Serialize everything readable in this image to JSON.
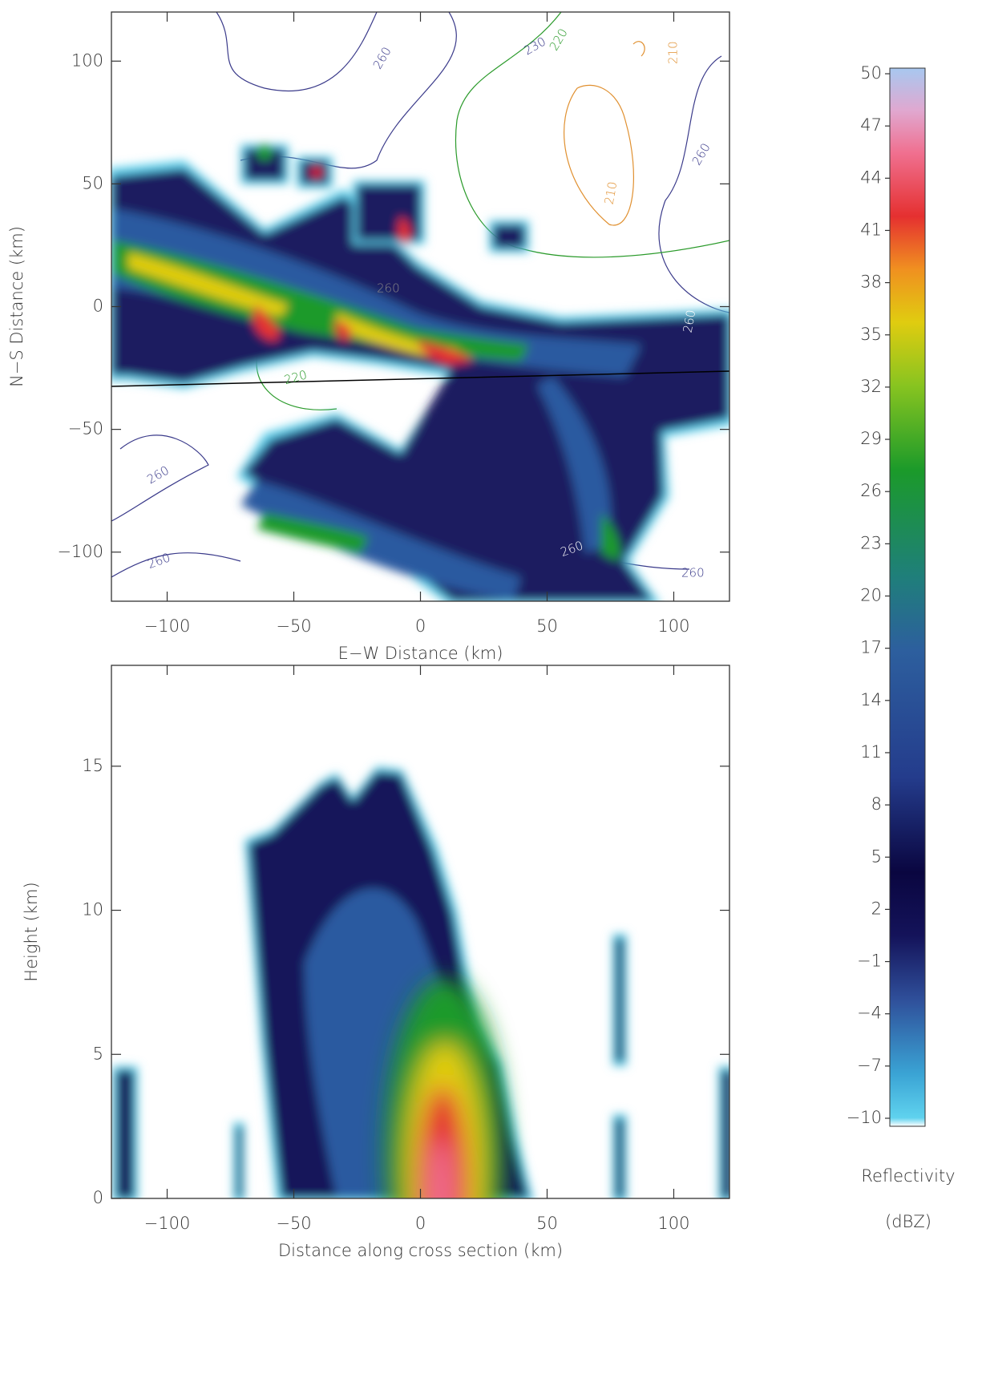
{
  "chart_data": [
    {
      "type": "heatmap",
      "xlabel": "E−W Distance (km)",
      "ylabel": "N−S Distance (km)",
      "xlim": [
        -122,
        122
      ],
      "ylim": [
        -120,
        120
      ],
      "xticks": [
        {
          "value": -100,
          "label": "−100"
        },
        {
          "value": -50,
          "label": "−50"
        },
        0,
        50,
        100
      ],
      "yticks": [
        {
          "value": -100,
          "label": "−100"
        },
        {
          "value": -50,
          "label": "−50"
        },
        0,
        50,
        100
      ],
      "contour_labels": [
        "260",
        "230",
        "220",
        "210",
        "260",
        "210",
        "220",
        "260",
        "260",
        "260",
        "260",
        "260",
        "260"
      ]
    },
    {
      "type": "heatmap",
      "xlabel": "Distance along cross section (km)",
      "ylabel": "Height (km)",
      "xlim": [
        -122,
        122
      ],
      "ylim": [
        0,
        18.5
      ],
      "xticks": [
        {
          "value": -100,
          "label": "−100"
        },
        {
          "value": -50,
          "label": "−50"
        },
        0,
        50,
        100
      ],
      "yticks": [
        0,
        5,
        10,
        15
      ]
    },
    {
      "type": "colorbar",
      "label": [
        "Reflectivity",
        "(dBZ)"
      ],
      "lim": [
        -10,
        50
      ],
      "ticks": [
        {
          "value": -10,
          "label": "−10"
        },
        {
          "value": -7,
          "label": "−7"
        },
        {
          "value": -4,
          "label": "−4"
        },
        {
          "value": -1,
          "label": "−1"
        },
        2,
        5,
        8,
        11,
        14,
        17,
        20,
        23,
        26,
        29,
        32,
        35,
        38,
        41,
        44,
        47,
        50
      ]
    }
  ]
}
